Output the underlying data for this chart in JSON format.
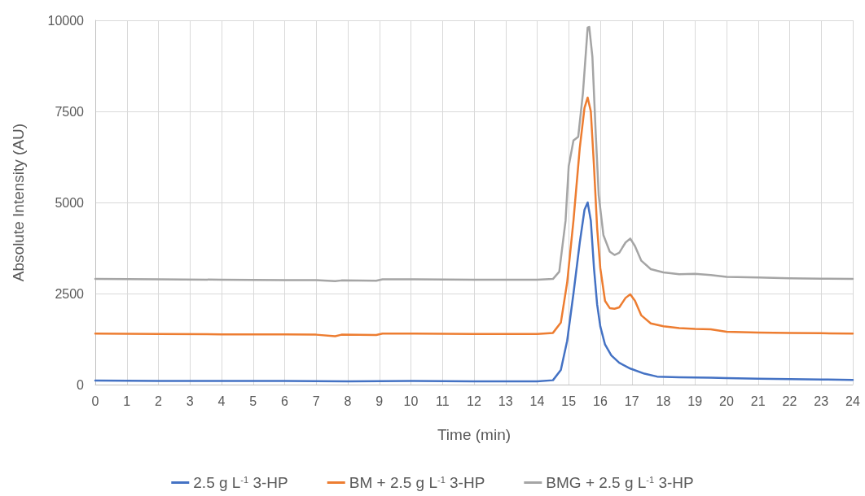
{
  "chart_data": {
    "type": "line",
    "xlabel": "Time (min)",
    "ylabel": "Absolute Intensity (AU)",
    "xlim": [
      0,
      24
    ],
    "xticks": [
      0,
      1,
      2,
      3,
      4,
      5,
      6,
      7,
      8,
      9,
      10,
      11,
      12,
      13,
      14,
      15,
      16,
      17,
      18,
      19,
      20,
      21,
      22,
      23,
      24
    ],
    "ylim": [
      0,
      10000
    ],
    "yticks": [
      0,
      2500,
      5000,
      7500,
      10000
    ],
    "grid": true,
    "legend": "bottom",
    "marker": "none",
    "series": [
      {
        "name": "2.5 g L$^{-1}$ 3-HP",
        "color": "#4472c4",
        "x": [
          0,
          2,
          4,
          6,
          8,
          10,
          12,
          14,
          14.5,
          14.75,
          14.95,
          15.15,
          15.35,
          15.5,
          15.6,
          15.7,
          15.8,
          15.9,
          16,
          16.15,
          16.35,
          16.6,
          16.95,
          17.4,
          17.8,
          18.5,
          19.5,
          20,
          21,
          22,
          23,
          24
        ],
        "values": [
          110,
          100,
          100,
          100,
          90,
          100,
          90,
          90,
          120,
          400,
          1200,
          2500,
          3900,
          4800,
          5000,
          4500,
          3200,
          2200,
          1600,
          1100,
          800,
          600,
          440,
          300,
          220,
          200,
          190,
          180,
          160,
          150,
          140,
          130
        ]
      },
      {
        "name": "BM + 2.5 g L$^{-1}$ 3-HP",
        "color": "#ed7d31",
        "x": [
          0,
          2,
          4,
          6,
          7,
          7.6,
          7.8,
          8.9,
          9.1,
          10,
          12,
          14,
          14.5,
          14.75,
          14.95,
          15.15,
          15.35,
          15.5,
          15.6,
          15.7,
          15.8,
          15.9,
          16,
          16.15,
          16.3,
          16.45,
          16.6,
          16.8,
          16.95,
          17.1,
          17.3,
          17.6,
          18,
          18.5,
          19,
          19.5,
          20,
          21,
          22,
          23,
          24
        ],
        "values": [
          1400,
          1390,
          1380,
          1380,
          1370,
          1330,
          1370,
          1360,
          1400,
          1400,
          1390,
          1390,
          1420,
          1700,
          2800,
          4500,
          6500,
          7600,
          7880,
          7500,
          6000,
          4300,
          3200,
          2300,
          2100,
          2080,
          2120,
          2380,
          2480,
          2300,
          1900,
          1680,
          1600,
          1550,
          1530,
          1520,
          1450,
          1430,
          1420,
          1410,
          1400
        ]
      },
      {
        "name": "BMG + 2.5 g L$^{-1}$ 3-HP",
        "color": "#a5a5a5",
        "x": [
          0,
          2,
          4,
          6,
          7,
          7.6,
          7.8,
          8.9,
          9.1,
          10,
          12,
          14,
          14.5,
          14.7,
          14.9,
          15,
          15.15,
          15.3,
          15.45,
          15.6,
          15.65,
          15.75,
          15.85,
          15.95,
          16.1,
          16.3,
          16.45,
          16.6,
          16.8,
          16.95,
          17.1,
          17.3,
          17.6,
          18,
          18.5,
          19,
          19.5,
          20,
          21,
          22,
          23,
          24
        ],
        "values": [
          2900,
          2890,
          2880,
          2870,
          2870,
          2840,
          2860,
          2850,
          2890,
          2890,
          2880,
          2880,
          2900,
          3100,
          4500,
          6000,
          6700,
          6800,
          8000,
          9800,
          9820,
          9000,
          7000,
          5200,
          4100,
          3650,
          3560,
          3620,
          3900,
          4010,
          3800,
          3400,
          3170,
          3080,
          3030,
          3040,
          3010,
          2960,
          2940,
          2920,
          2910,
          2900
        ]
      }
    ]
  }
}
